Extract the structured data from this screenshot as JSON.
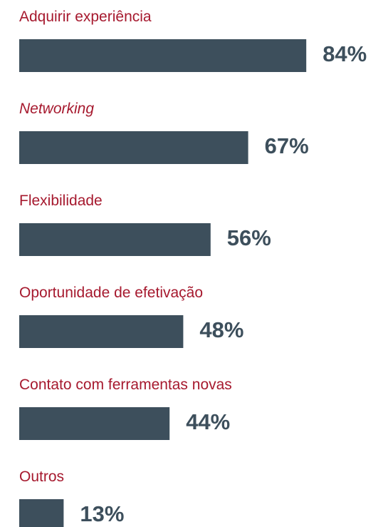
{
  "chart_data": {
    "type": "bar",
    "orientation": "horizontal",
    "categories": [
      "Adquirir experiência",
      "Networking",
      "Flexibilidade",
      "Oportunidade de efetivação",
      "Contato com ferramentas novas",
      "Outros"
    ],
    "values": [
      84,
      67,
      56,
      48,
      44,
      13
    ],
    "value_labels": [
      "84%",
      "67%",
      "56%",
      "48%",
      "44%",
      "13%"
    ],
    "color": "#3d4f5c"
  }
}
